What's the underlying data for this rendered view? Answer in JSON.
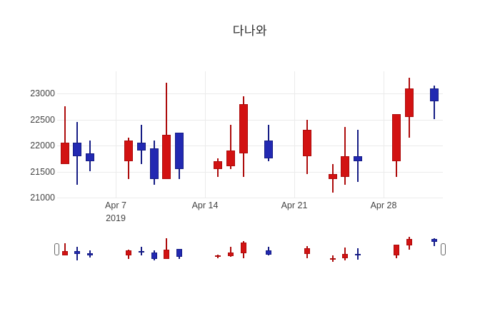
{
  "title": "다나와",
  "colors": {
    "increasing_fill": "#d21212",
    "increasing_line": "#ad0c0c",
    "decreasing_fill": "#2229b2",
    "decreasing_line": "#161d85",
    "grid": "#ebebeb",
    "tick_text": "#444444",
    "background": "#ffffff"
  },
  "y_axis": {
    "ticks": [
      "23000",
      "22500",
      "22000",
      "21500",
      "21000"
    ],
    "tick_values": [
      23000,
      22500,
      22000,
      21500,
      21000
    ]
  },
  "x_axis": {
    "ticks": [
      {
        "label": "Apr 7",
        "sublabel": "2019",
        "day_offset": 0
      },
      {
        "label": "Apr 14",
        "sublabel": "",
        "day_offset": 7
      },
      {
        "label": "Apr 21",
        "sublabel": "",
        "day_offset": 14
      },
      {
        "label": "Apr 28",
        "sublabel": "",
        "day_offset": 21
      }
    ]
  },
  "rangeslider": {
    "visible": true
  },
  "chart_data": {
    "type": "candlestick",
    "title": "다나와",
    "increasing_color": "red",
    "decreasing_color": "blue",
    "ylim": [
      21000,
      23450
    ],
    "grid": true,
    "legend": false,
    "rangeslider": true,
    "x_tick_labels": [
      "Apr 7 2019",
      "Apr 14",
      "Apr 21",
      "Apr 28"
    ],
    "candles": [
      {
        "date": "2019-04-03",
        "open": 21650,
        "high": 22750,
        "low": 21650,
        "close": 22050
      },
      {
        "date": "2019-04-04",
        "open": 22050,
        "high": 22450,
        "low": 21250,
        "close": 21800
      },
      {
        "date": "2019-04-05",
        "open": 21850,
        "high": 22100,
        "low": 21500,
        "close": 21700
      },
      {
        "date": "2019-04-08",
        "open": 21700,
        "high": 22150,
        "low": 21350,
        "close": 22100
      },
      {
        "date": "2019-04-09",
        "open": 22050,
        "high": 22400,
        "low": 21650,
        "close": 21900
      },
      {
        "date": "2019-04-10",
        "open": 21950,
        "high": 22100,
        "low": 21250,
        "close": 21350
      },
      {
        "date": "2019-04-11",
        "open": 21350,
        "high": 23200,
        "low": 21350,
        "close": 22200
      },
      {
        "date": "2019-04-12",
        "open": 22250,
        "high": 22250,
        "low": 21350,
        "close": 21550
      },
      {
        "date": "2019-04-15",
        "open": 21550,
        "high": 21750,
        "low": 21400,
        "close": 21700
      },
      {
        "date": "2019-04-16",
        "open": 21600,
        "high": 22400,
        "low": 21550,
        "close": 21900
      },
      {
        "date": "2019-04-17",
        "open": 21850,
        "high": 22950,
        "low": 21400,
        "close": 22800
      },
      {
        "date": "2019-04-19",
        "open": 22100,
        "high": 22400,
        "low": 21700,
        "close": 21750
      },
      {
        "date": "2019-04-22",
        "open": 21800,
        "high": 22500,
        "low": 21450,
        "close": 22300
      },
      {
        "date": "2019-04-24",
        "open": 21350,
        "high": 21650,
        "low": 21100,
        "close": 21450
      },
      {
        "date": "2019-04-25",
        "open": 21400,
        "high": 22350,
        "low": 21250,
        "close": 21800
      },
      {
        "date": "2019-04-26",
        "open": 21800,
        "high": 22300,
        "low": 21300,
        "close": 21700
      },
      {
        "date": "2019-04-29",
        "open": 21700,
        "high": 22600,
        "low": 21400,
        "close": 22600
      },
      {
        "date": "2019-04-30",
        "open": 22550,
        "high": 23300,
        "low": 22150,
        "close": 23100
      },
      {
        "date": "2019-05-02",
        "open": 23100,
        "high": 23150,
        "low": 22500,
        "close": 22850
      }
    ]
  }
}
